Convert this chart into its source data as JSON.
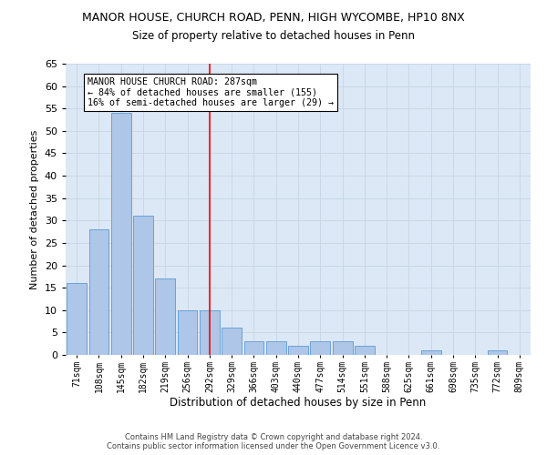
{
  "title1": "MANOR HOUSE, CHURCH ROAD, PENN, HIGH WYCOMBE, HP10 8NX",
  "title2": "Size of property relative to detached houses in Penn",
  "xlabel": "Distribution of detached houses by size in Penn",
  "ylabel": "Number of detached properties",
  "footnote1": "Contains HM Land Registry data © Crown copyright and database right 2024.",
  "footnote2": "Contains public sector information licensed under the Open Government Licence v3.0.",
  "annotation_line1": "MANOR HOUSE CHURCH ROAD: 287sqm",
  "annotation_line2": "← 84% of detached houses are smaller (155)",
  "annotation_line3": "16% of semi-detached houses are larger (29) →",
  "bar_categories": [
    "71sqm",
    "108sqm",
    "145sqm",
    "182sqm",
    "219sqm",
    "256sqm",
    "292sqm",
    "329sqm",
    "366sqm",
    "403sqm",
    "440sqm",
    "477sqm",
    "514sqm",
    "551sqm",
    "588sqm",
    "625sqm",
    "661sqm",
    "698sqm",
    "735sqm",
    "772sqm",
    "809sqm"
  ],
  "bar_values": [
    16,
    28,
    54,
    31,
    17,
    10,
    10,
    6,
    3,
    3,
    2,
    3,
    3,
    2,
    0,
    0,
    1,
    0,
    0,
    1,
    0
  ],
  "bar_color": "#aec6e8",
  "bar_edge_color": "#5b9bd5",
  "vline_color": "red",
  "vline_x": 6.0,
  "ylim": [
    0,
    65
  ],
  "yticks": [
    0,
    5,
    10,
    15,
    20,
    25,
    30,
    35,
    40,
    45,
    50,
    55,
    60,
    65
  ],
  "grid_color": "#c8d8e8",
  "bg_color": "#dce8f5",
  "fig_width": 6.0,
  "fig_height": 5.0,
  "dpi": 100
}
